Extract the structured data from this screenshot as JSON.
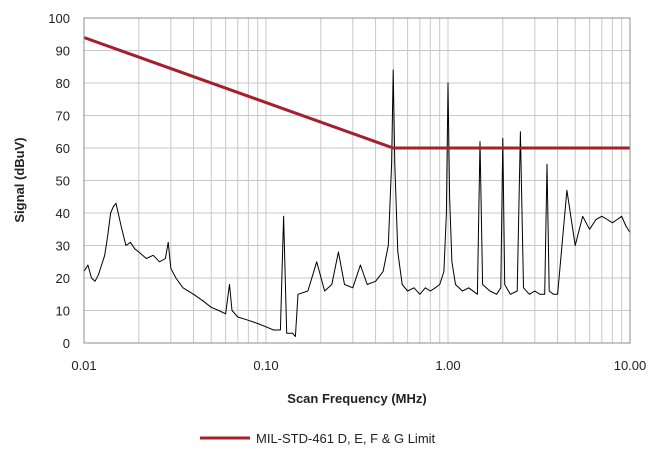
{
  "chart_data": {
    "type": "line",
    "title": "",
    "xlabel": "Scan Frequency (MHz)",
    "ylabel": "Signal (dBuV)",
    "x_scale": "log",
    "xlim": [
      0.01,
      10.0
    ],
    "ylim": [
      0,
      100
    ],
    "y_ticks": [
      0,
      10,
      20,
      30,
      40,
      50,
      60,
      70,
      80,
      90,
      100
    ],
    "x_tick_labels": [
      "0.01",
      "0.10",
      "1.00",
      "10.00"
    ],
    "x_tick_values": [
      0.01,
      0.1,
      1.0,
      10.0
    ],
    "grid": true,
    "legend_position": "bottom",
    "series": [
      {
        "name": "MIL-STD-461 D, E, F & G Limit",
        "color": "#a51f2d",
        "x": [
          0.01,
          0.5,
          10.0
        ],
        "y": [
          94,
          60,
          60
        ]
      },
      {
        "name": "",
        "color": "#000000",
        "x": [
          0.01,
          0.0105,
          0.011,
          0.0115,
          0.012,
          0.0125,
          0.013,
          0.0135,
          0.014,
          0.0145,
          0.015,
          0.016,
          0.017,
          0.018,
          0.019,
          0.02,
          0.022,
          0.024,
          0.026,
          0.028,
          0.029,
          0.03,
          0.032,
          0.035,
          0.04,
          0.045,
          0.05,
          0.055,
          0.06,
          0.063,
          0.065,
          0.07,
          0.08,
          0.09,
          0.1,
          0.11,
          0.12,
          0.125,
          0.13,
          0.14,
          0.145,
          0.15,
          0.17,
          0.19,
          0.21,
          0.23,
          0.25,
          0.27,
          0.3,
          0.33,
          0.36,
          0.4,
          0.44,
          0.47,
          0.49,
          0.5,
          0.51,
          0.53,
          0.56,
          0.6,
          0.65,
          0.7,
          0.75,
          0.8,
          0.85,
          0.9,
          0.95,
          0.98,
          1.0,
          1.02,
          1.05,
          1.1,
          1.2,
          1.3,
          1.45,
          1.5,
          1.55,
          1.7,
          1.85,
          1.95,
          2.0,
          2.05,
          2.2,
          2.4,
          2.5,
          2.6,
          2.8,
          3.0,
          3.2,
          3.4,
          3.5,
          3.6,
          3.8,
          4.0,
          4.5,
          5.0,
          5.5,
          6.0,
          6.5,
          7.0,
          7.5,
          8.0,
          8.5,
          9.0,
          9.5,
          10.0
        ],
        "y": [
          22,
          24,
          20,
          19,
          21,
          24,
          27,
          33,
          40,
          42,
          43,
          36,
          30,
          31,
          29,
          28,
          26,
          27,
          25,
          26,
          31,
          23,
          20,
          17,
          15,
          13,
          11,
          10,
          9,
          18,
          10,
          8,
          7,
          6,
          5,
          4,
          4,
          39,
          3,
          3,
          2,
          15,
          16,
          25,
          16,
          18,
          28,
          18,
          17,
          24,
          18,
          19,
          22,
          30,
          55,
          84,
          55,
          28,
          18,
          16,
          17,
          15,
          17,
          16,
          17,
          18,
          22,
          40,
          80,
          45,
          25,
          18,
          16,
          17,
          15,
          62,
          18,
          16,
          15,
          17,
          63,
          18,
          15,
          16,
          65,
          17,
          15,
          16,
          15,
          15,
          55,
          16,
          15,
          15,
          47,
          30,
          39,
          35,
          38,
          39,
          38,
          37,
          38,
          39,
          36,
          34
        ]
      }
    ]
  }
}
